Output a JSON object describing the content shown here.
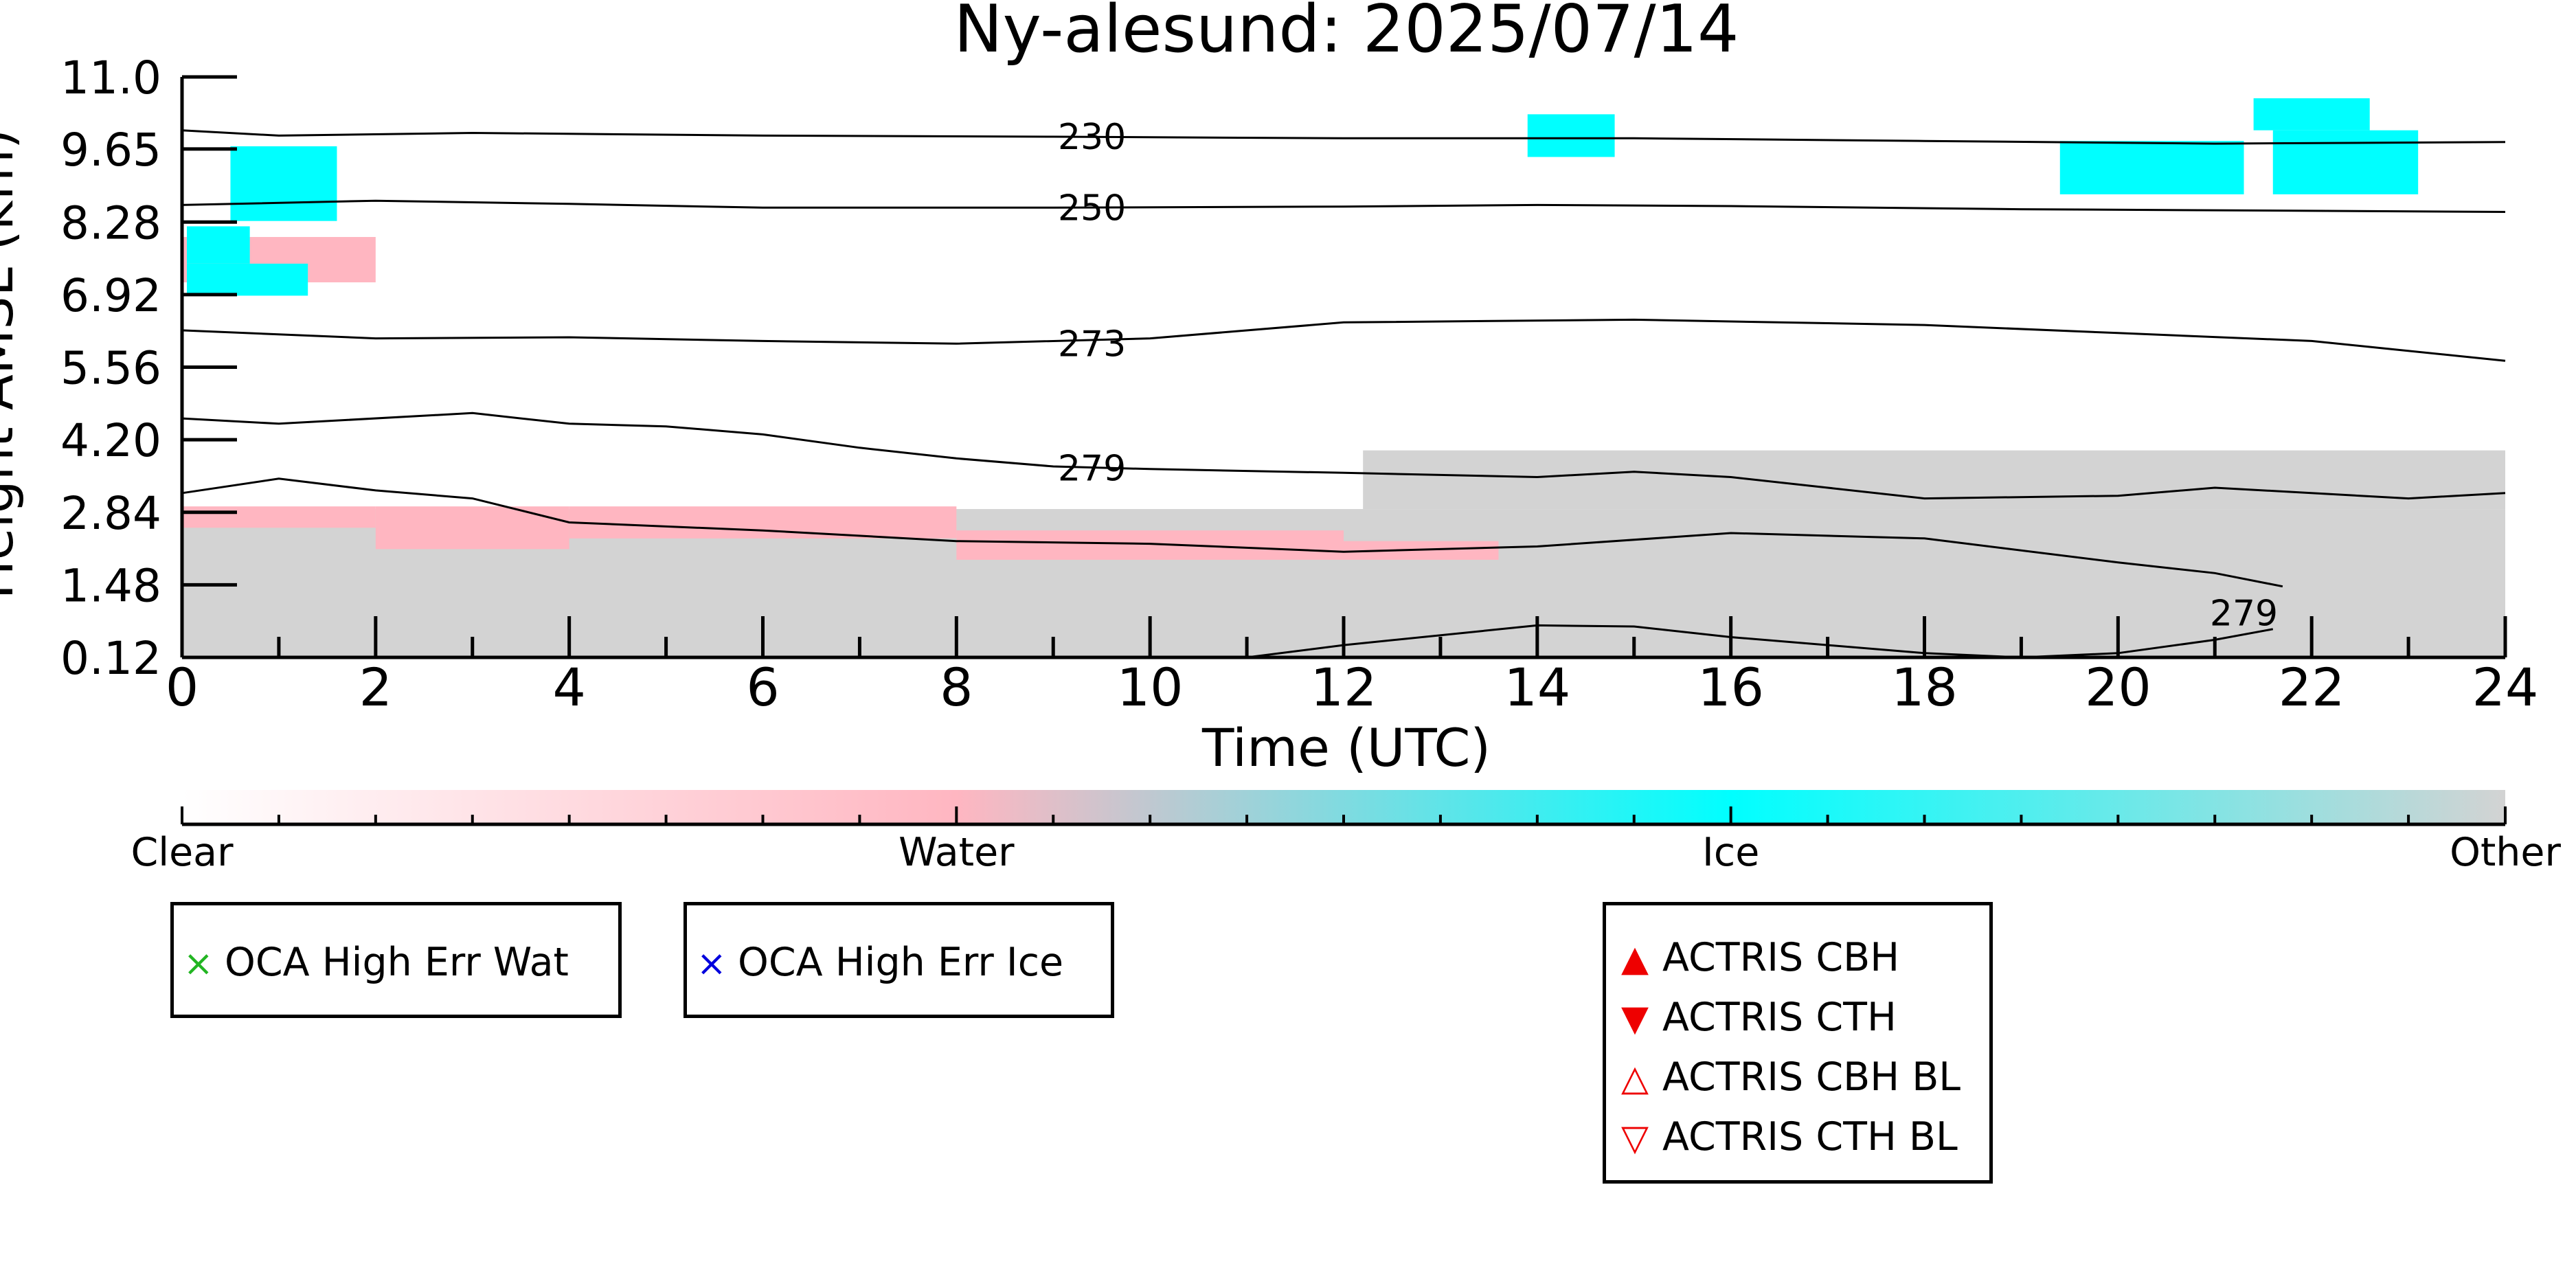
{
  "chart_data": {
    "type": "heatmap",
    "title": "Ny-alesund: 2025/07/14",
    "xlabel": "Time (UTC)",
    "ylabel": "Height AMSL (km)",
    "xlim": [
      0,
      24
    ],
    "ylim": [
      0.12,
      11.0
    ],
    "x_ticks": [
      0,
      2,
      4,
      6,
      8,
      10,
      12,
      14,
      16,
      18,
      20,
      22,
      24
    ],
    "y_ticks": [
      "0.12",
      "1.48",
      "2.84",
      "4.20",
      "5.56",
      "6.92",
      "8.28",
      "9.65",
      "11.0"
    ],
    "colorbar": {
      "labels": [
        "Clear",
        "Water",
        "Ice",
        "Other"
      ],
      "colors": [
        "#ffffff",
        "#ffb6c1",
        "#00ffff",
        "#d3d3d3"
      ]
    },
    "contours": [
      {
        "label": "230",
        "points": [
          [
            0,
            10.0
          ],
          [
            1,
            9.9
          ],
          [
            3,
            9.95
          ],
          [
            6,
            9.9
          ],
          [
            9,
            9.88
          ],
          [
            12,
            9.85
          ],
          [
            15,
            9.85
          ],
          [
            18,
            9.8
          ],
          [
            21,
            9.75
          ],
          [
            24,
            9.78
          ]
        ]
      },
      {
        "label": "250",
        "points": [
          [
            0,
            8.6
          ],
          [
            2,
            8.68
          ],
          [
            4,
            8.62
          ],
          [
            6,
            8.55
          ],
          [
            9,
            8.55
          ],
          [
            12,
            8.57
          ],
          [
            14,
            8.6
          ],
          [
            16,
            8.58
          ],
          [
            19,
            8.52
          ],
          [
            22,
            8.49
          ],
          [
            24,
            8.47
          ]
        ]
      },
      {
        "label": "273",
        "points": [
          [
            0,
            6.25
          ],
          [
            2,
            6.1
          ],
          [
            4,
            6.12
          ],
          [
            6,
            6.05
          ],
          [
            8,
            6.0
          ],
          [
            10,
            6.1
          ],
          [
            12,
            6.4
          ],
          [
            15,
            6.45
          ],
          [
            18,
            6.35
          ],
          [
            20,
            6.2
          ],
          [
            22,
            6.05
          ],
          [
            24,
            5.68
          ]
        ]
      },
      {
        "label": "279",
        "points": [
          [
            0,
            4.6
          ],
          [
            1,
            4.5
          ],
          [
            3,
            4.7
          ],
          [
            4,
            4.5
          ],
          [
            5,
            4.45
          ],
          [
            6,
            4.3
          ],
          [
            7,
            4.05
          ],
          [
            8,
            3.85
          ],
          [
            9,
            3.7
          ],
          [
            10,
            3.65
          ],
          [
            12,
            3.58
          ],
          [
            14,
            3.5
          ],
          [
            15,
            3.6
          ],
          [
            16,
            3.5
          ],
          [
            17,
            3.3
          ],
          [
            18,
            3.1
          ],
          [
            20,
            3.15
          ],
          [
            21,
            3.3
          ],
          [
            23,
            3.1
          ],
          [
            24,
            3.2
          ]
        ]
      },
      {
        "label": "279",
        "points": [
          [
            0,
            3.2
          ],
          [
            1,
            3.47
          ],
          [
            2,
            3.25
          ],
          [
            3,
            3.1
          ],
          [
            4,
            2.65
          ],
          [
            6,
            2.5
          ],
          [
            8,
            2.3
          ],
          [
            10,
            2.25
          ],
          [
            12,
            2.1
          ],
          [
            14,
            2.2
          ],
          [
            16,
            2.45
          ],
          [
            18,
            2.35
          ],
          [
            20,
            1.9
          ],
          [
            21,
            1.7
          ],
          [
            21.7,
            1.45
          ]
        ]
      },
      {
        "label": "279",
        "points": [
          [
            11,
            0.12
          ],
          [
            12,
            0.35
          ],
          [
            14,
            0.72
          ],
          [
            15,
            0.7
          ],
          [
            16,
            0.5
          ],
          [
            17,
            0.35
          ],
          [
            18,
            0.2
          ],
          [
            19,
            0.12
          ],
          [
            20,
            0.2
          ],
          [
            21,
            0.45
          ],
          [
            21.6,
            0.65
          ]
        ]
      }
    ],
    "contour_labels": [
      {
        "text": "230",
        "x": 9.4,
        "y": 9.88
      },
      {
        "text": "250",
        "x": 9.4,
        "y": 8.55
      },
      {
        "text": "273",
        "x": 9.4,
        "y": 6.0
      },
      {
        "text": "279",
        "x": 9.4,
        "y": 3.67
      },
      {
        "text": "279",
        "x": 21.3,
        "y": 0.95
      }
    ],
    "regions": [
      {
        "class": "Other",
        "x0": 0,
        "x1": 24,
        "y0": 0.12,
        "y1": 2.9
      },
      {
        "class": "Other",
        "x0": 12.2,
        "x1": 24,
        "y0": 2.9,
        "y1": 4.0
      },
      {
        "class": "Water",
        "x0": 0,
        "x1": 2.0,
        "y0": 2.55,
        "y1": 2.95
      },
      {
        "class": "Water",
        "x0": 2.0,
        "x1": 4.0,
        "y0": 2.15,
        "y1": 2.95
      },
      {
        "class": "Water",
        "x0": 4.0,
        "x1": 8.0,
        "y0": 2.35,
        "y1": 2.95
      },
      {
        "class": "Water",
        "x0": 8.0,
        "x1": 12.0,
        "y0": 1.95,
        "y1": 2.5
      },
      {
        "class": "Water",
        "x0": 12.0,
        "x1": 13.6,
        "y0": 1.95,
        "y1": 2.3
      },
      {
        "class": "Water",
        "x0": 0,
        "x1": 2.0,
        "y0": 7.15,
        "y1": 8.0
      },
      {
        "class": "Ice",
        "x0": 0.05,
        "x1": 1.3,
        "y0": 6.9,
        "y1": 7.5
      },
      {
        "class": "Ice",
        "x0": 0.05,
        "x1": 0.7,
        "y0": 7.5,
        "y1": 8.2
      },
      {
        "class": "Ice",
        "x0": 0.5,
        "x1": 1.6,
        "y0": 8.3,
        "y1": 9.7
      },
      {
        "class": "Ice",
        "x0": 13.9,
        "x1": 14.8,
        "y0": 9.5,
        "y1": 10.3
      },
      {
        "class": "Ice",
        "x0": 19.4,
        "x1": 21.3,
        "y0": 8.8,
        "y1": 9.8
      },
      {
        "class": "Ice",
        "x0": 21.6,
        "x1": 23.1,
        "y0": 8.8,
        "y1": 10.0
      },
      {
        "class": "Ice",
        "x0": 21.4,
        "x1": 22.6,
        "y0": 10.0,
        "y1": 10.6
      }
    ],
    "legends": [
      {
        "entries": [
          {
            "marker": "×",
            "color": "#22b522",
            "label": "OCA High Err Wat"
          }
        ]
      },
      {
        "entries": [
          {
            "marker": "×",
            "color": "#0000dd",
            "label": "OCA High Err Ice"
          }
        ]
      },
      {
        "entries": [
          {
            "marker": "▲",
            "color": "#ee0000",
            "label": "ACTRIS CBH"
          },
          {
            "marker": "▼",
            "color": "#ee0000",
            "label": "ACTRIS CTH"
          },
          {
            "marker": "△",
            "color": "#ee0000",
            "label": "ACTRIS CBH BL"
          },
          {
            "marker": "▽",
            "color": "#ee0000",
            "label": "ACTRIS CTH BL"
          }
        ]
      }
    ]
  }
}
